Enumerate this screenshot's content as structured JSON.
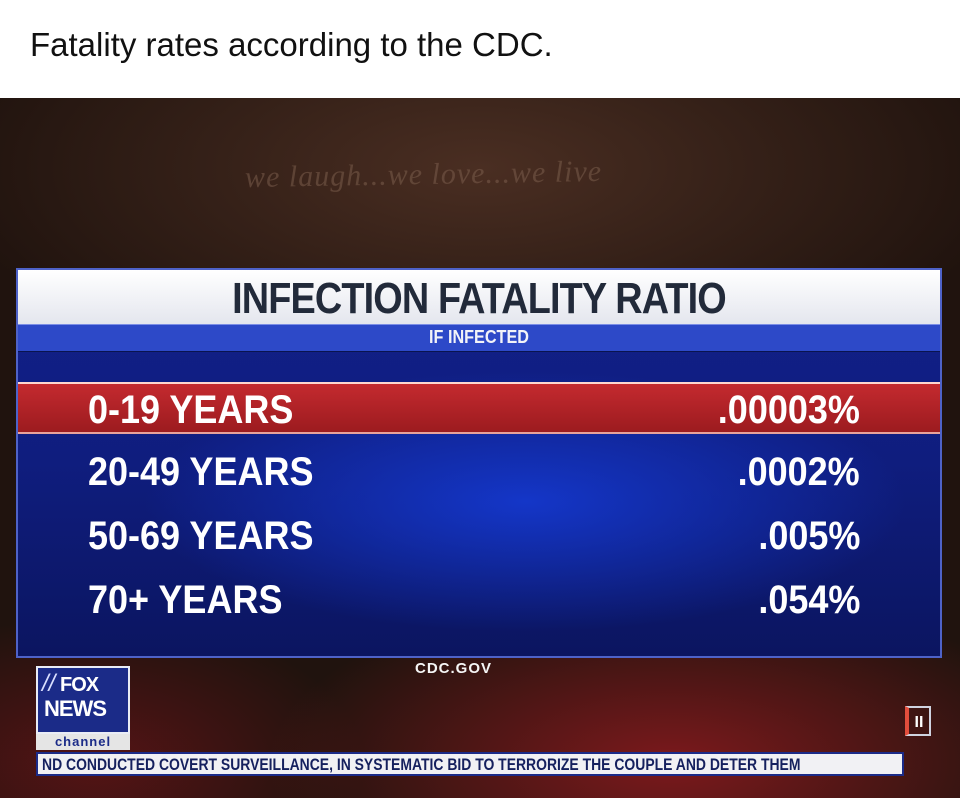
{
  "caption": "Fatality rates according to the CDC.",
  "background_sign": "we laugh...we love...we live",
  "graphic": {
    "title": "INFECTION FATALITY RATIO",
    "subtitle": "IF INFECTED",
    "rows": [
      {
        "label": "0-19 YEARS",
        "value": ".00003%",
        "highlighted": true
      },
      {
        "label": "20-49 YEARS",
        "value": ".0002%",
        "highlighted": false
      },
      {
        "label": "50-69 YEARS",
        "value": ".005%",
        "highlighted": false
      },
      {
        "label": "70+ YEARS",
        "value": ".054%",
        "highlighted": false
      }
    ],
    "source": "CDC.GOV"
  },
  "logo": {
    "fox": "FOX",
    "news": "NEWS",
    "channel": "channel"
  },
  "ticker": "ND CONDUCTED COVERT SURVEILLANCE, IN SYSTEMATIC BID TO TERRORIZE THE COUPLE AND DETER THEM",
  "live_badge": "II",
  "colors": {
    "panel_blue": "#12208a",
    "highlight_red": "#c42a2f",
    "title_bg": "#ffffff"
  }
}
